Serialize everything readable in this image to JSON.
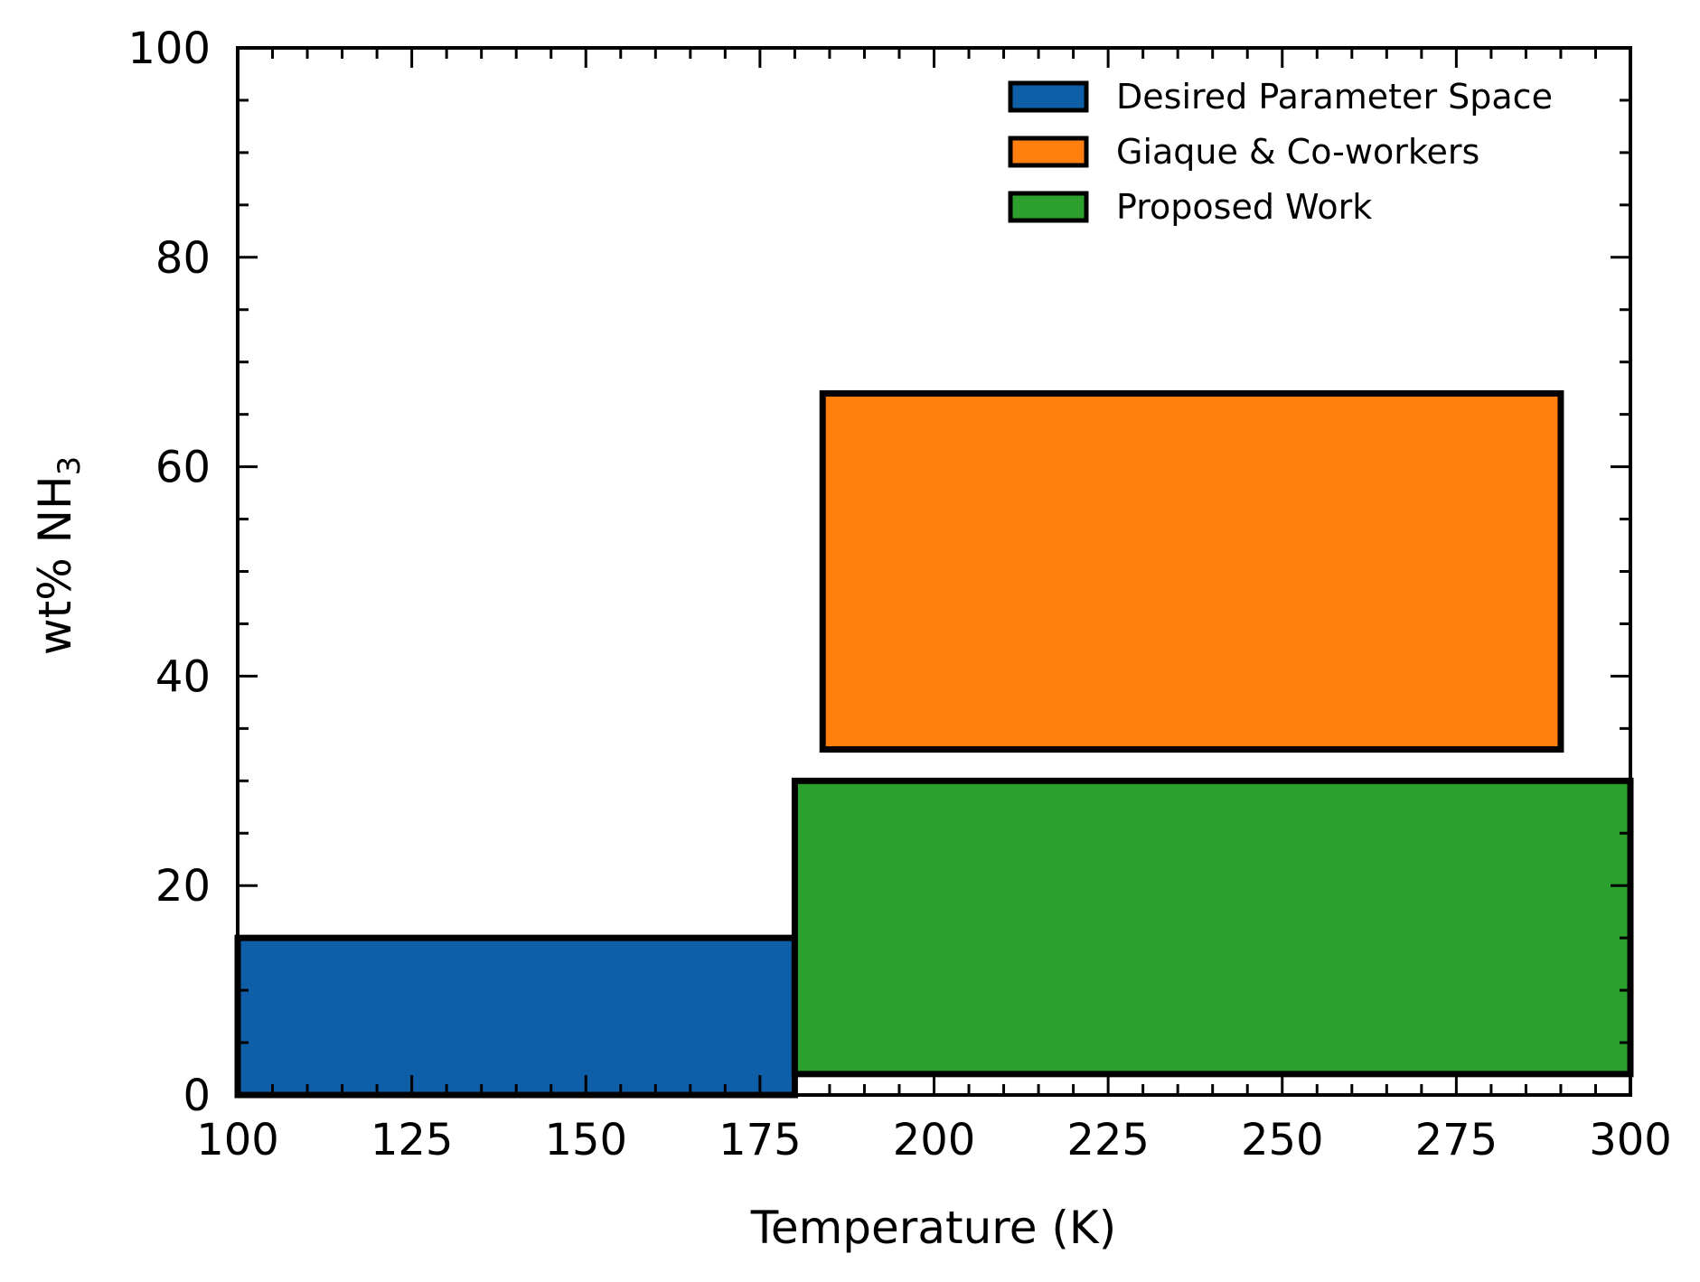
{
  "chart_data": {
    "type": "bar",
    "title": "",
    "xlabel": "Temperature (K)",
    "ylabel_main": "wt% NH",
    "ylabel_subscript": "3",
    "xlim": [
      100,
      300
    ],
    "ylim": [
      0,
      100
    ],
    "xticks": [
      100,
      125,
      150,
      175,
      200,
      225,
      250,
      275,
      300
    ],
    "yticks": [
      0,
      20,
      40,
      60,
      80,
      100
    ],
    "grid": false,
    "legend_position": "top-right",
    "series": [
      {
        "name": "Desired Parameter Space",
        "color": "#0f5fa8",
        "x_range": [
          100,
          180
        ],
        "y_range": [
          0,
          15
        ]
      },
      {
        "name": "Giaque & Co-workers",
        "color": "#ff7f0e",
        "x_range": [
          184,
          290
        ],
        "y_range": [
          33,
          67
        ]
      },
      {
        "name": "Proposed Work",
        "color": "#2ca02c",
        "x_range": [
          180,
          300
        ],
        "y_range": [
          2,
          30
        ]
      }
    ]
  }
}
